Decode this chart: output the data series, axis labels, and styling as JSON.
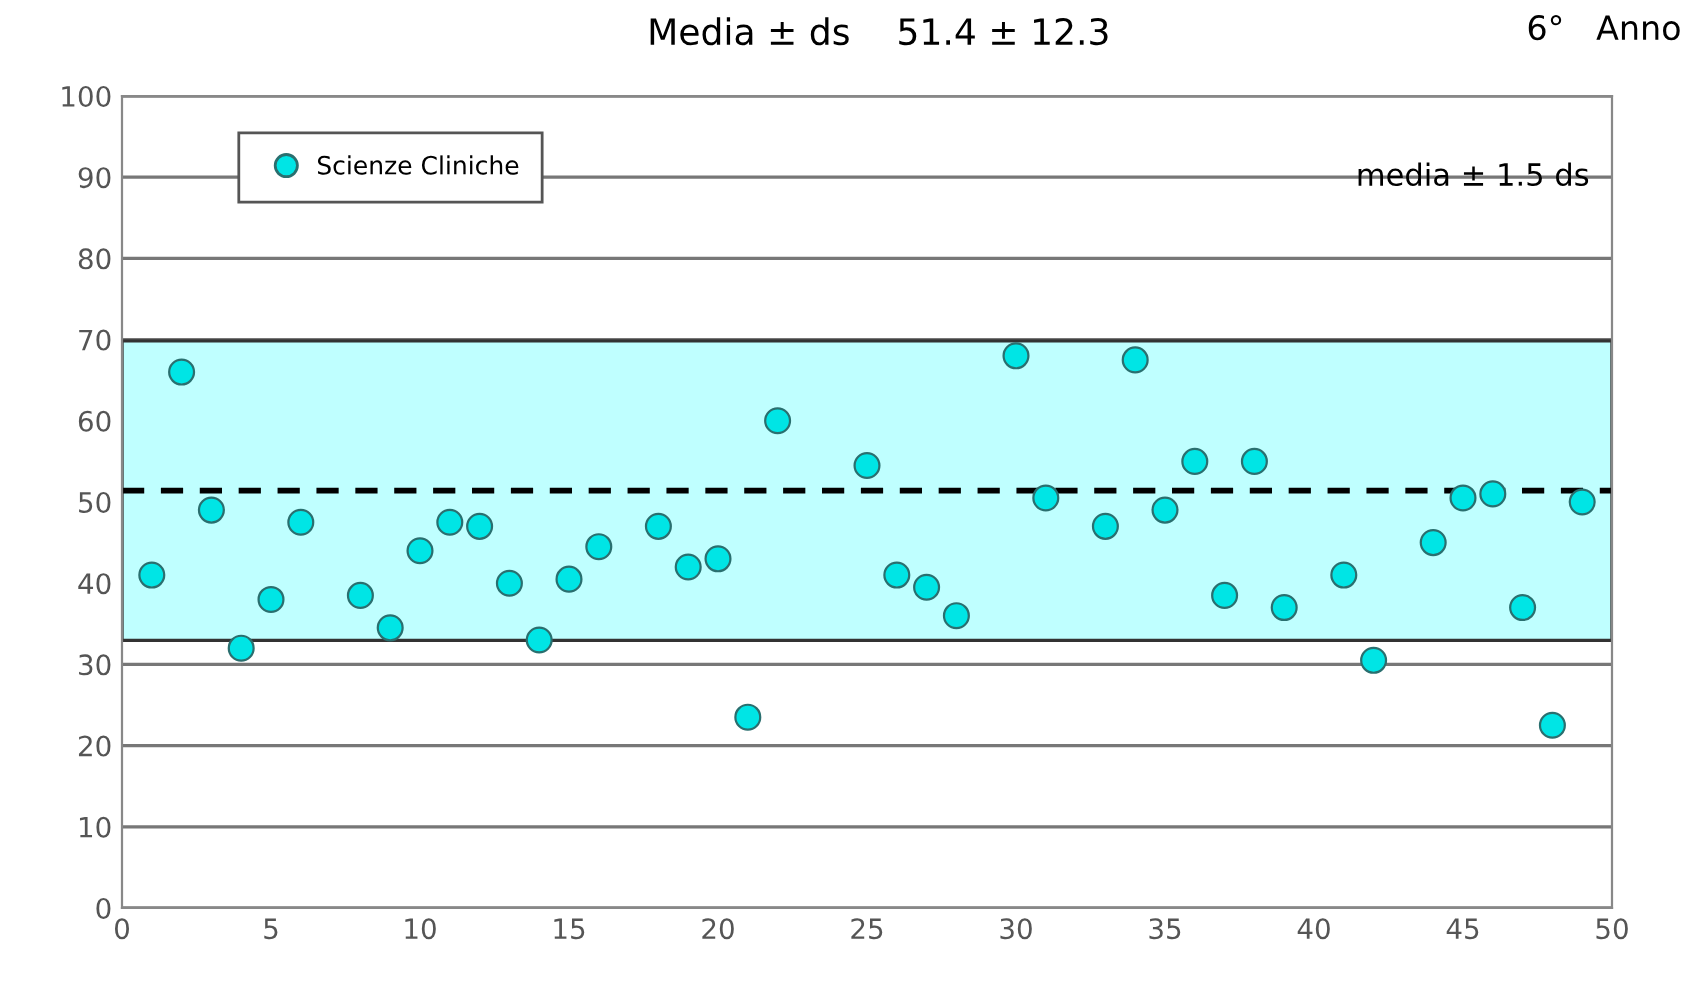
{
  "chart_data": {
    "type": "scatter",
    "title": "Media ± ds    51.4 ± 12.3",
    "subtitle": "6°   Anno",
    "x": [
      1,
      2,
      3,
      4,
      5,
      6,
      8,
      9,
      10,
      11,
      12,
      13,
      14,
      15,
      16,
      18,
      19,
      20,
      21,
      22,
      25,
      26,
      27,
      28,
      30,
      31,
      33,
      34,
      35,
      36,
      37,
      38,
      39,
      41,
      42,
      44,
      45,
      46,
      47,
      48,
      49
    ],
    "series": [
      {
        "name": "Scienze Cliniche",
        "color": "#00e5e5",
        "values": [
          41,
          66,
          49,
          32,
          38,
          47.5,
          38.5,
          34.5,
          44,
          47.5,
          47,
          40,
          33,
          40.5,
          44.5,
          47,
          42,
          43,
          23.5,
          60,
          54.5,
          41,
          39.5,
          36,
          68,
          50.5,
          47,
          67.5,
          49,
          55,
          38.5,
          55,
          37,
          41,
          30.5,
          45,
          50.5,
          51,
          37,
          22.5,
          50
        ]
      }
    ],
    "xlim": [
      0,
      50
    ],
    "xticks": [
      0,
      5,
      10,
      15,
      20,
      25,
      30,
      35,
      40,
      45,
      50
    ],
    "ylim": [
      0,
      100
    ],
    "yticks": [
      0,
      10,
      20,
      30,
      40,
      50,
      60,
      70,
      80,
      90,
      100
    ],
    "ref_lines": [
      {
        "axis": "y",
        "value": 51.4,
        "label": null,
        "color": "#000000",
        "line_style": "dashed"
      }
    ],
    "bands": [
      {
        "axis": "y",
        "from": 32.95,
        "to": 69.85,
        "label": null,
        "color": "#bfffff"
      }
    ],
    "annotations": [
      "media ± 1.5 ds"
    ],
    "grid": "y",
    "legend": "top left",
    "marker": "circle"
  }
}
